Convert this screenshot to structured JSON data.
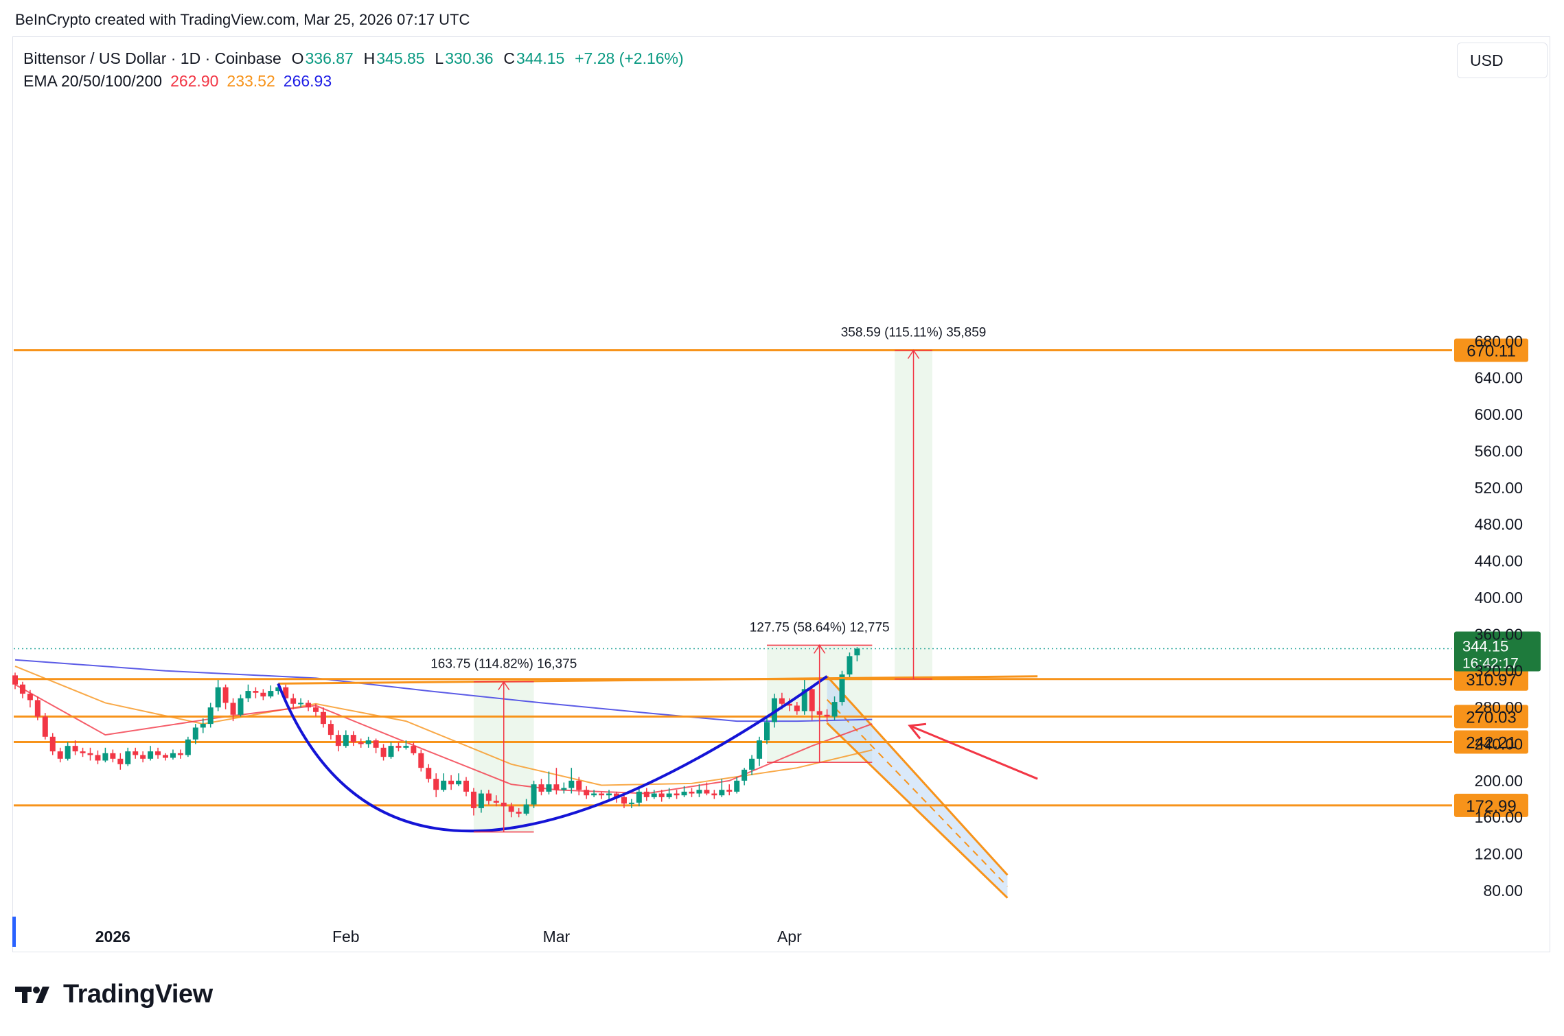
{
  "header": {
    "credit": "BeInCrypto created with TradingView.com, Mar 25, 2026 07:17 UTC"
  },
  "legend": {
    "symbol": "Bittensor / US Dollar · 1D · Coinbase",
    "o_label": "O",
    "open": "336.87",
    "h_label": "H",
    "high": "345.85",
    "l_label": "L",
    "low": "330.36",
    "c_label": "C",
    "close": "344.15",
    "change": "+7.28 (+2.16%)",
    "ema_label": "EMA 20/50/100/200",
    "ema20": "262.90",
    "ema50": "233.52",
    "ema200": "266.93"
  },
  "currency_button": "USD",
  "logo_text": "TradingView",
  "colors": {
    "up": "#089981",
    "down": "#f23645",
    "level": "#f7931a",
    "ema20": "#f23645",
    "ema50": "#f7931a",
    "ema200": "#5b5be6",
    "cup": "#1414d6",
    "measure_fill": "#e8f5e9",
    "channel_fill": "#bbd7f5"
  },
  "chart_data": {
    "type": "candlestick",
    "title": "Bittensor / US Dollar · 1D · Coinbase",
    "ylim": [
      65,
      690
    ],
    "y_ticks": [
      "680.00",
      "640.00",
      "600.00",
      "560.00",
      "520.00",
      "480.00",
      "440.00",
      "400.00",
      "360.00",
      "320.00",
      "280.00",
      "240.00",
      "200.00",
      "160.00",
      "120.00",
      "80.00"
    ],
    "x_ticks": [
      {
        "label": "2026",
        "x": "2026-01-01",
        "bold": true
      },
      {
        "label": "Feb",
        "x": "2026-02-01",
        "bold": false
      },
      {
        "label": "Mar",
        "x": "2026-03-01",
        "bold": false
      },
      {
        "label": "Apr",
        "x": "2026-04-01",
        "bold": false
      }
    ],
    "start_date": "2025-12-19",
    "candles": [
      [
        315,
        305,
        318,
        300
      ],
      [
        305,
        295,
        308,
        290
      ],
      [
        295,
        288,
        299,
        280
      ],
      [
        288,
        270,
        292,
        266
      ],
      [
        270,
        248,
        274,
        245
      ],
      [
        248,
        232,
        252,
        228
      ],
      [
        232,
        224,
        236,
        220
      ],
      [
        224,
        238,
        242,
        222
      ],
      [
        238,
        232,
        244,
        228
      ],
      [
        232,
        230,
        236,
        226
      ],
      [
        230,
        228,
        236,
        222
      ],
      [
        228,
        222,
        233,
        218
      ],
      [
        222,
        230,
        236,
        220
      ],
      [
        230,
        224,
        234,
        220
      ],
      [
        224,
        218,
        230,
        212
      ],
      [
        218,
        232,
        236,
        216
      ],
      [
        232,
        228,
        236,
        224
      ],
      [
        228,
        224,
        232,
        220
      ],
      [
        224,
        232,
        238,
        222
      ],
      [
        232,
        228,
        236,
        224
      ],
      [
        228,
        225,
        230,
        222
      ],
      [
        225,
        230,
        234,
        223
      ],
      [
        230,
        228,
        234,
        224
      ],
      [
        228,
        245,
        248,
        226
      ],
      [
        245,
        258,
        262,
        240
      ],
      [
        258,
        262,
        268,
        252
      ],
      [
        262,
        280,
        285,
        258
      ],
      [
        280,
        302,
        310,
        276
      ],
      [
        302,
        285,
        305,
        278
      ],
      [
        285,
        272,
        290,
        265
      ],
      [
        272,
        290,
        294,
        270
      ],
      [
        290,
        298,
        305,
        286
      ],
      [
        298,
        296,
        302,
        290
      ],
      [
        296,
        292,
        300,
        288
      ],
      [
        292,
        298,
        304,
        290
      ],
      [
        298,
        302,
        306,
        294
      ],
      [
        302,
        290,
        305,
        285
      ],
      [
        290,
        284,
        295,
        278
      ],
      [
        284,
        285,
        290,
        280
      ],
      [
        285,
        280,
        288,
        276
      ],
      [
        280,
        275,
        284,
        270
      ],
      [
        275,
        262,
        280,
        258
      ],
      [
        262,
        250,
        266,
        245
      ],
      [
        250,
        238,
        255,
        232
      ],
      [
        238,
        250,
        255,
        236
      ],
      [
        250,
        242,
        254,
        238
      ],
      [
        242,
        240,
        246,
        236
      ],
      [
        240,
        244,
        248,
        236
      ],
      [
        244,
        236,
        246,
        230
      ],
      [
        236,
        226,
        240,
        222
      ],
      [
        226,
        238,
        242,
        224
      ],
      [
        238,
        236,
        242,
        232
      ],
      [
        236,
        238,
        244,
        234
      ],
      [
        238,
        230,
        242,
        228
      ],
      [
        230,
        214,
        234,
        210
      ],
      [
        214,
        202,
        218,
        198
      ],
      [
        202,
        190,
        208,
        182
      ],
      [
        190,
        200,
        208,
        188
      ],
      [
        200,
        196,
        206,
        190
      ],
      [
        196,
        200,
        208,
        194
      ],
      [
        200,
        188,
        204,
        183
      ],
      [
        188,
        170,
        192,
        162
      ],
      [
        170,
        186,
        190,
        165
      ],
      [
        186,
        178,
        190,
        174
      ],
      [
        178,
        176,
        184,
        172
      ],
      [
        176,
        172,
        180,
        168
      ],
      [
        172,
        166,
        176,
        160
      ],
      [
        166,
        164,
        170,
        160
      ],
      [
        164,
        174,
        180,
        162
      ],
      [
        174,
        196,
        200,
        170
      ],
      [
        196,
        188,
        202,
        184
      ],
      [
        188,
        196,
        210,
        185
      ],
      [
        196,
        190,
        214,
        185
      ],
      [
        190,
        192,
        198,
        186
      ],
      [
        192,
        200,
        214,
        186
      ],
      [
        200,
        190,
        204,
        184
      ],
      [
        190,
        184,
        194,
        180
      ],
      [
        184,
        186,
        190,
        182
      ],
      [
        186,
        184,
        188,
        180
      ],
      [
        184,
        186,
        190,
        180
      ],
      [
        186,
        182,
        188,
        176
      ],
      [
        182,
        175,
        186,
        170
      ],
      [
        175,
        176,
        180,
        170
      ],
      [
        176,
        188,
        194,
        172
      ],
      [
        188,
        182,
        192,
        178
      ],
      [
        182,
        186,
        190,
        180
      ],
      [
        186,
        182,
        190,
        177
      ],
      [
        182,
        186,
        192,
        180
      ],
      [
        186,
        184,
        190,
        180
      ],
      [
        184,
        188,
        194,
        182
      ],
      [
        188,
        186,
        192,
        182
      ],
      [
        186,
        190,
        196,
        182
      ],
      [
        190,
        186,
        198,
        184
      ],
      [
        186,
        184,
        190,
        180
      ],
      [
        184,
        190,
        202,
        182
      ],
      [
        190,
        188,
        196,
        184
      ],
      [
        188,
        200,
        204,
        186
      ],
      [
        200,
        212,
        214,
        195
      ],
      [
        212,
        224,
        228,
        206
      ],
      [
        224,
        244,
        248,
        216
      ],
      [
        244,
        264,
        268,
        240
      ],
      [
        264,
        290,
        295,
        258
      ],
      [
        290,
        284,
        296,
        278
      ],
      [
        284,
        282,
        290,
        276
      ],
      [
        282,
        276,
        286,
        272
      ],
      [
        276,
        300,
        310,
        272
      ],
      [
        300,
        276,
        304,
        266
      ],
      [
        276,
        272,
        280,
        266
      ],
      [
        272,
        270,
        278,
        264
      ],
      [
        270,
        286,
        292,
        266
      ],
      [
        286,
        316,
        320,
        282
      ],
      [
        316,
        336,
        340,
        312
      ],
      [
        336.87,
        344.15,
        345.85,
        330.36
      ]
    ],
    "ema20": [
      [
        0,
        305
      ],
      [
        12,
        250
      ],
      [
        28,
        270
      ],
      [
        40,
        282
      ],
      [
        55,
        232
      ],
      [
        66,
        196
      ],
      [
        72,
        190
      ],
      [
        84,
        186
      ],
      [
        95,
        200
      ],
      [
        106,
        238
      ],
      [
        114,
        262
      ]
    ],
    "ema50": [
      [
        0,
        325
      ],
      [
        12,
        285
      ],
      [
        25,
        262
      ],
      [
        40,
        284
      ],
      [
        52,
        265
      ],
      [
        66,
        218
      ],
      [
        78,
        195
      ],
      [
        90,
        197
      ],
      [
        104,
        214
      ],
      [
        114,
        233.5
      ]
    ],
    "ema200": [
      [
        0,
        332
      ],
      [
        20,
        320
      ],
      [
        40,
        312
      ],
      [
        55,
        298
      ],
      [
        70,
        285
      ],
      [
        84,
        274
      ],
      [
        96,
        265
      ],
      [
        104,
        265
      ],
      [
        114,
        266.9
      ]
    ],
    "levels": [
      {
        "price": 670.11,
        "label": "670.11"
      },
      {
        "price": 310.97,
        "label": "310.97"
      },
      {
        "price": 270.03,
        "label": "270.03"
      },
      {
        "price": 242.21,
        "label": "242.21"
      },
      {
        "price": 172.99,
        "label": "172.99"
      }
    ],
    "last_price": {
      "label": "344.15",
      "countdown": "16:42:17",
      "price": 344.15
    },
    "measures": [
      {
        "label": "163.75 (114.82%) 16,375",
        "i0": 61,
        "i1": 69,
        "p0": 144,
        "p1": 308
      },
      {
        "label": "127.75 (58.64%) 12,775",
        "i0": 100,
        "i1": 114,
        "p0": 220,
        "p1": 348
      },
      {
        "label": "358.59 (115.11%) 35,859",
        "i0": 117,
        "i1": 122,
        "p0": 311,
        "p1": 670
      }
    ],
    "cup_handle_neckline": [
      [
        35,
        306
      ],
      [
        136,
        314
      ]
    ],
    "cup": [
      [
        35,
        306
      ],
      [
        61,
        145
      ],
      [
        108,
        314
      ]
    ],
    "channel": {
      "upper": [
        [
          108,
          314
        ],
        [
          132,
          97
        ]
      ],
      "lower": [
        [
          108,
          263
        ],
        [
          132,
          72
        ]
      ]
    },
    "arrow": {
      "from": [
        136,
        202
      ],
      "to": [
        119,
        260
      ]
    }
  }
}
